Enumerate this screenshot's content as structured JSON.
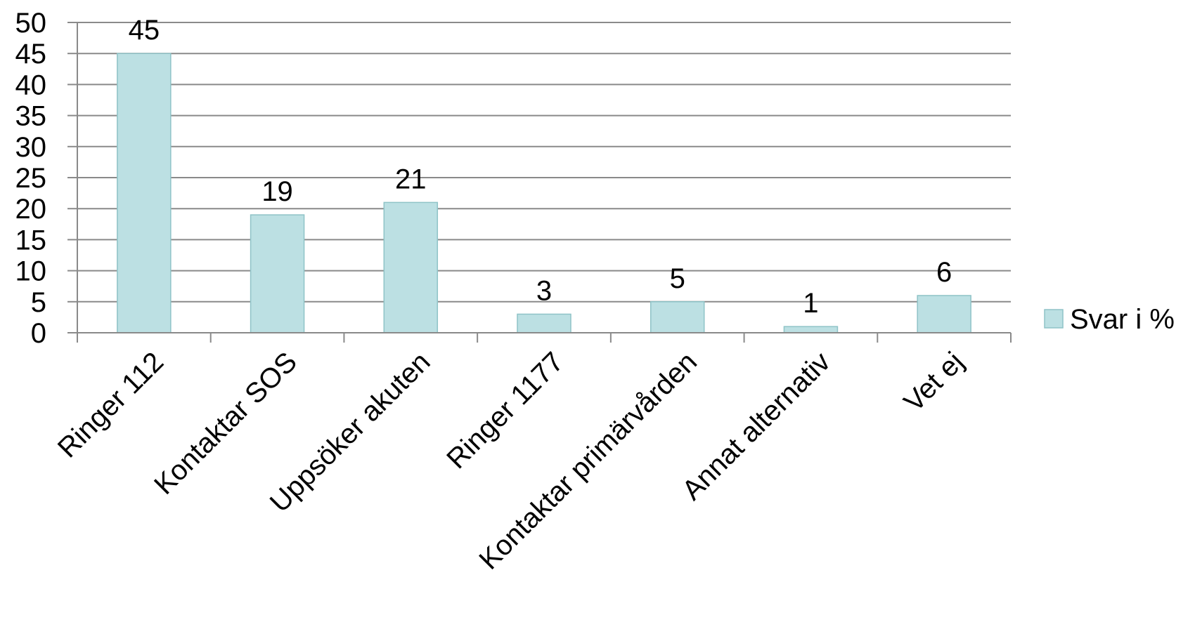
{
  "chart_data": {
    "type": "bar",
    "categories": [
      "Ringer 112",
      "Kontaktar SOS",
      "Uppsöker akuten",
      "Ringer 1177",
      "Kontaktar primärvården",
      "Annat alternativ",
      "Vet ej"
    ],
    "series": [
      {
        "name": "Svar i %",
        "values": [
          45,
          19,
          21,
          3,
          5,
          1,
          6
        ],
        "color": "#bce0e3",
        "border": "#8fc3c7"
      }
    ],
    "ylim": [
      0,
      50
    ],
    "yticks": [
      0,
      5,
      10,
      15,
      20,
      25,
      30,
      35,
      40,
      45,
      50
    ],
    "grid": true,
    "data_labels": true,
    "legend_position": "right"
  }
}
